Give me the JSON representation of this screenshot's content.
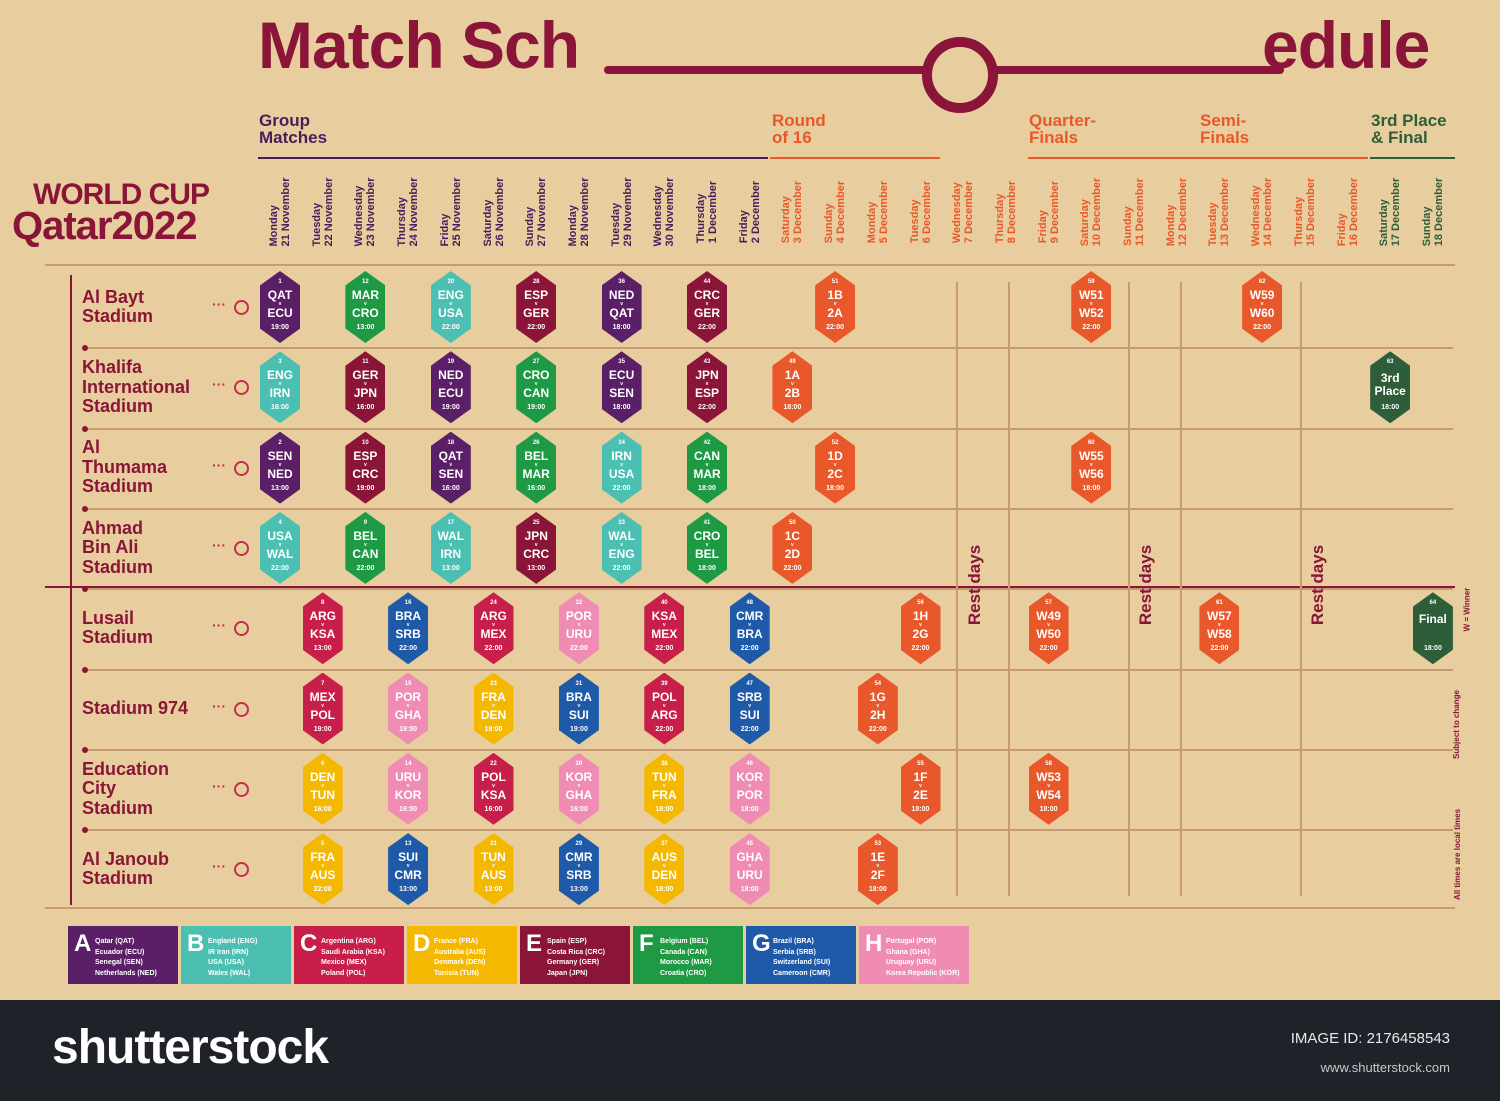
{
  "title": {
    "left": "Match Sch",
    "right": "edule"
  },
  "logo": {
    "line1": "WORLD CUP",
    "line2": "Qatar2022"
  },
  "phases": [
    {
      "label": "Group\nMatches",
      "color": "#4a1c5c"
    },
    {
      "label": "Round\nof 16",
      "color": "#e8582a"
    },
    {
      "label": "Quarter-\nFinals",
      "color": "#e8582a"
    },
    {
      "label": "Semi-\nFinals",
      "color": "#e8582a"
    },
    {
      "label": "3rd Place\n& Final",
      "color": "#2e5d3a"
    }
  ],
  "days": [
    "Monday\n21 November",
    "Tuesday\n22 November",
    "Wednesday\n23 November",
    "Thursday\n24 November",
    "Friday\n25 November",
    "Saturday\n26 November",
    "Sunday\n27 November",
    "Monday\n28 November",
    "Tuesday\n29 November",
    "Wednesday\n30 November",
    "Thursday\n1 December",
    "Friday\n2 December",
    "Saturday\n3 December",
    "Sunday\n4 December",
    "Monday\n5 December",
    "Tuesday\n6 December",
    "Wednesday\n7 December",
    "Thursday\n8 December",
    "Friday\n9 December",
    "Saturday\n10 December",
    "Sunday\n11 December",
    "Monday\n12 December",
    "Tuesday\n13 December",
    "Wednesday\n14 December",
    "Thursday\n15 December",
    "Friday\n16 December",
    "Saturday\n17 December",
    "Sunday\n18 December"
  ],
  "stadiums": [
    "Al Bayt\nStadium",
    "Khalifa\nInternational\nStadium",
    "Al\nThumama\nStadium",
    "Ahmad\nBin Ali\nStadium",
    "Lusail\nStadium",
    "Stadium 974",
    "Education\nCity\nStadium",
    "Al Janoub\nStadium"
  ],
  "colors": {
    "A": "#5b1f68",
    "B": "#4cbfb3",
    "C": "#c81e4a",
    "D": "#f5b800",
    "E": "#8a1538",
    "F": "#1e9a45",
    "G": "#1e5aa8",
    "H": "#f08cb4",
    "KO": "#e8582a",
    "FINAL": "#2e5d3a"
  },
  "matches": [
    {
      "n": "1",
      "a": "QAT",
      "b": "ECU",
      "t": "19:00",
      "g": "A",
      "s": 0,
      "d": 0
    },
    {
      "n": "12",
      "a": "MAR",
      "b": "CRO",
      "t": "13:00",
      "g": "F",
      "s": 0,
      "d": 2
    },
    {
      "n": "20",
      "a": "ENG",
      "b": "USA",
      "t": "22:00",
      "g": "B",
      "s": 0,
      "d": 4
    },
    {
      "n": "28",
      "a": "ESP",
      "b": "GER",
      "t": "22:00",
      "g": "E",
      "s": 0,
      "d": 6
    },
    {
      "n": "36",
      "a": "NED",
      "b": "QAT",
      "t": "18:00",
      "g": "A",
      "s": 0,
      "d": 8
    },
    {
      "n": "44",
      "a": "CRC",
      "b": "GER",
      "t": "22:00",
      "g": "E",
      "s": 0,
      "d": 10
    },
    {
      "n": "51",
      "a": "1B",
      "b": "2A",
      "t": "22:00",
      "g": "KO",
      "s": 0,
      "d": 13
    },
    {
      "n": "59",
      "a": "W51",
      "b": "W52",
      "t": "22:00",
      "g": "KO",
      "s": 0,
      "d": 19
    },
    {
      "n": "62",
      "a": "W59",
      "b": "W60",
      "t": "22:00",
      "g": "KO",
      "s": 0,
      "d": 23
    },
    {
      "n": "3",
      "a": "ENG",
      "b": "IRN",
      "t": "16:00",
      "g": "B",
      "s": 1,
      "d": 0
    },
    {
      "n": "11",
      "a": "GER",
      "b": "JPN",
      "t": "16:00",
      "g": "E",
      "s": 1,
      "d": 2
    },
    {
      "n": "19",
      "a": "NED",
      "b": "ECU",
      "t": "19:00",
      "g": "A",
      "s": 1,
      "d": 4
    },
    {
      "n": "27",
      "a": "CRO",
      "b": "CAN",
      "t": "19:00",
      "g": "F",
      "s": 1,
      "d": 6
    },
    {
      "n": "35",
      "a": "ECU",
      "b": "SEN",
      "t": "18:00",
      "g": "A",
      "s": 1,
      "d": 8
    },
    {
      "n": "43",
      "a": "JPN",
      "b": "ESP",
      "t": "22:00",
      "g": "E",
      "s": 1,
      "d": 10
    },
    {
      "n": "49",
      "a": "1A",
      "b": "2B",
      "t": "18:00",
      "g": "KO",
      "s": 1,
      "d": 12
    },
    {
      "n": "2",
      "a": "SEN",
      "b": "NED",
      "t": "13:00",
      "g": "A",
      "s": 2,
      "d": 0
    },
    {
      "n": "10",
      "a": "ESP",
      "b": "CRC",
      "t": "19:00",
      "g": "E",
      "s": 2,
      "d": 2
    },
    {
      "n": "18",
      "a": "QAT",
      "b": "SEN",
      "t": "16:00",
      "g": "A",
      "s": 2,
      "d": 4
    },
    {
      "n": "26",
      "a": "BEL",
      "b": "MAR",
      "t": "16:00",
      "g": "F",
      "s": 2,
      "d": 6
    },
    {
      "n": "34",
      "a": "IRN",
      "b": "USA",
      "t": "22:00",
      "g": "B",
      "s": 2,
      "d": 8
    },
    {
      "n": "42",
      "a": "CAN",
      "b": "MAR",
      "t": "18:00",
      "g": "F",
      "s": 2,
      "d": 10
    },
    {
      "n": "52",
      "a": "1D",
      "b": "2C",
      "t": "18:00",
      "g": "KO",
      "s": 2,
      "d": 13
    },
    {
      "n": "60",
      "a": "W55",
      "b": "W56",
      "t": "18:00",
      "g": "KO",
      "s": 2,
      "d": 19
    },
    {
      "n": "4",
      "a": "USA",
      "b": "WAL",
      "t": "22:00",
      "g": "B",
      "s": 3,
      "d": 0
    },
    {
      "n": "9",
      "a": "BEL",
      "b": "CAN",
      "t": "22:00",
      "g": "F",
      "s": 3,
      "d": 2
    },
    {
      "n": "17",
      "a": "WAL",
      "b": "IRN",
      "t": "13:00",
      "g": "B",
      "s": 3,
      "d": 4
    },
    {
      "n": "25",
      "a": "JPN",
      "b": "CRC",
      "t": "13:00",
      "g": "E",
      "s": 3,
      "d": 6
    },
    {
      "n": "33",
      "a": "WAL",
      "b": "ENG",
      "t": "22:00",
      "g": "B",
      "s": 3,
      "d": 8
    },
    {
      "n": "41",
      "a": "CRO",
      "b": "BEL",
      "t": "18:00",
      "g": "F",
      "s": 3,
      "d": 10
    },
    {
      "n": "50",
      "a": "1C",
      "b": "2D",
      "t": "22:00",
      "g": "KO",
      "s": 3,
      "d": 12
    },
    {
      "n": "8",
      "a": "ARG",
      "b": "KSA",
      "t": "13:00",
      "g": "C",
      "s": 4,
      "d": 1
    },
    {
      "n": "16",
      "a": "BRA",
      "b": "SRB",
      "t": "22:00",
      "g": "G",
      "s": 4,
      "d": 3
    },
    {
      "n": "24",
      "a": "ARG",
      "b": "MEX",
      "t": "22:00",
      "g": "C",
      "s": 4,
      "d": 5
    },
    {
      "n": "32",
      "a": "POR",
      "b": "URU",
      "t": "22:00",
      "g": "H",
      "s": 4,
      "d": 7
    },
    {
      "n": "40",
      "a": "KSA",
      "b": "MEX",
      "t": "22:00",
      "g": "C",
      "s": 4,
      "d": 9
    },
    {
      "n": "48",
      "a": "CMR",
      "b": "BRA",
      "t": "22:00",
      "g": "G",
      "s": 4,
      "d": 11
    },
    {
      "n": "56",
      "a": "1H",
      "b": "2G",
      "t": "22:00",
      "g": "KO",
      "s": 4,
      "d": 15
    },
    {
      "n": "57",
      "a": "W49",
      "b": "W50",
      "t": "22:00",
      "g": "KO",
      "s": 4,
      "d": 18
    },
    {
      "n": "61",
      "a": "W57",
      "b": "W58",
      "t": "22:00",
      "g": "KO",
      "s": 4,
      "d": 22
    },
    {
      "n": "7",
      "a": "MEX",
      "b": "POL",
      "t": "19:00",
      "g": "C",
      "s": 5,
      "d": 1
    },
    {
      "n": "15",
      "a": "POR",
      "b": "GHA",
      "t": "19:00",
      "g": "H",
      "s": 5,
      "d": 3
    },
    {
      "n": "23",
      "a": "FRA",
      "b": "DEN",
      "t": "19:00",
      "g": "D",
      "s": 5,
      "d": 5
    },
    {
      "n": "31",
      "a": "BRA",
      "b": "SUI",
      "t": "19:00",
      "g": "G",
      "s": 5,
      "d": 7
    },
    {
      "n": "39",
      "a": "POL",
      "b": "ARG",
      "t": "22:00",
      "g": "C",
      "s": 5,
      "d": 9
    },
    {
      "n": "47",
      "a": "SRB",
      "b": "SUI",
      "t": "22:00",
      "g": "G",
      "s": 5,
      "d": 11
    },
    {
      "n": "54",
      "a": "1G",
      "b": "2H",
      "t": "22:00",
      "g": "KO",
      "s": 5,
      "d": 14
    },
    {
      "n": "6",
      "a": "DEN",
      "b": "TUN",
      "t": "16:00",
      "g": "D",
      "s": 6,
      "d": 1
    },
    {
      "n": "14",
      "a": "URU",
      "b": "KOR",
      "t": "16:00",
      "g": "H",
      "s": 6,
      "d": 3
    },
    {
      "n": "22",
      "a": "POL",
      "b": "KSA",
      "t": "16:00",
      "g": "C",
      "s": 6,
      "d": 5
    },
    {
      "n": "30",
      "a": "KOR",
      "b": "GHA",
      "t": "16:00",
      "g": "H",
      "s": 6,
      "d": 7
    },
    {
      "n": "38",
      "a": "TUN",
      "b": "FRA",
      "t": "18:00",
      "g": "D",
      "s": 6,
      "d": 9
    },
    {
      "n": "46",
      "a": "KOR",
      "b": "POR",
      "t": "18:00",
      "g": "H",
      "s": 6,
      "d": 11
    },
    {
      "n": "55",
      "a": "1F",
      "b": "2E",
      "t": "18:00",
      "g": "KO",
      "s": 6,
      "d": 15
    },
    {
      "n": "58",
      "a": "W53",
      "b": "W54",
      "t": "18:00",
      "g": "KO",
      "s": 6,
      "d": 18
    },
    {
      "n": "5",
      "a": "FRA",
      "b": "AUS",
      "t": "22:00",
      "g": "D",
      "s": 7,
      "d": 1
    },
    {
      "n": "13",
      "a": "SUI",
      "b": "CMR",
      "t": "13:00",
      "g": "G",
      "s": 7,
      "d": 3
    },
    {
      "n": "21",
      "a": "TUN",
      "b": "AUS",
      "t": "13:00",
      "g": "D",
      "s": 7,
      "d": 5
    },
    {
      "n": "29",
      "a": "CMR",
      "b": "SRB",
      "t": "13:00",
      "g": "G",
      "s": 7,
      "d": 7
    },
    {
      "n": "37",
      "a": "AUS",
      "b": "DEN",
      "t": "18:00",
      "g": "D",
      "s": 7,
      "d": 9
    },
    {
      "n": "45",
      "a": "GHA",
      "b": "URU",
      "t": "18:00",
      "g": "H",
      "s": 7,
      "d": 11
    },
    {
      "n": "53",
      "a": "1E",
      "b": "2F",
      "t": "18:00",
      "g": "KO",
      "s": 7,
      "d": 14
    }
  ],
  "specials": [
    {
      "n": "63",
      "label": "3rd\nPlace",
      "t": "18:00",
      "s": 1,
      "d": 26
    },
    {
      "n": "64",
      "label": "Final",
      "t": "18:00",
      "s": 4,
      "d": 27
    }
  ],
  "rest_label": "Rest days",
  "notes": [
    "W = Winner",
    "Subject to change",
    "All times are local times"
  ],
  "legend": [
    {
      "letter": "A",
      "teams": "Qatar (QAT)\nEcuador (ECU)\nSenegal (SEN)\nNetherlands (NED)"
    },
    {
      "letter": "B",
      "teams": "England (ENG)\nIR Iran (IRN)\nUSA (USA)\nWales (WAL)"
    },
    {
      "letter": "C",
      "teams": "Argentina (ARG)\nSaudi Arabia (KSA)\nMexico (MEX)\nPoland (POL)"
    },
    {
      "letter": "D",
      "teams": "France (FRA)\nAustralia (AUS)\nDenmark (DEN)\nTunisia (TUN)"
    },
    {
      "letter": "E",
      "teams": "Spain (ESP)\nCosta Rica (CRC)\nGermany (GER)\nJapan (JPN)"
    },
    {
      "letter": "F",
      "teams": "Belgium (BEL)\nCanada (CAN)\nMorocco (MAR)\nCroatia (CRO)"
    },
    {
      "letter": "G",
      "teams": "Brazil (BRA)\nSerbia (SRB)\nSwitzerland (SUI)\nCameroon (CMR)"
    },
    {
      "letter": "H",
      "teams": "Portugal (POR)\nGhana (GHA)\nUruguay (URU)\nKorea Republic (KOR)"
    }
  ],
  "footer": {
    "brand": "shutterstock",
    "image_id": "IMAGE ID: 2176458543",
    "url": "www.shutterstock.com"
  }
}
